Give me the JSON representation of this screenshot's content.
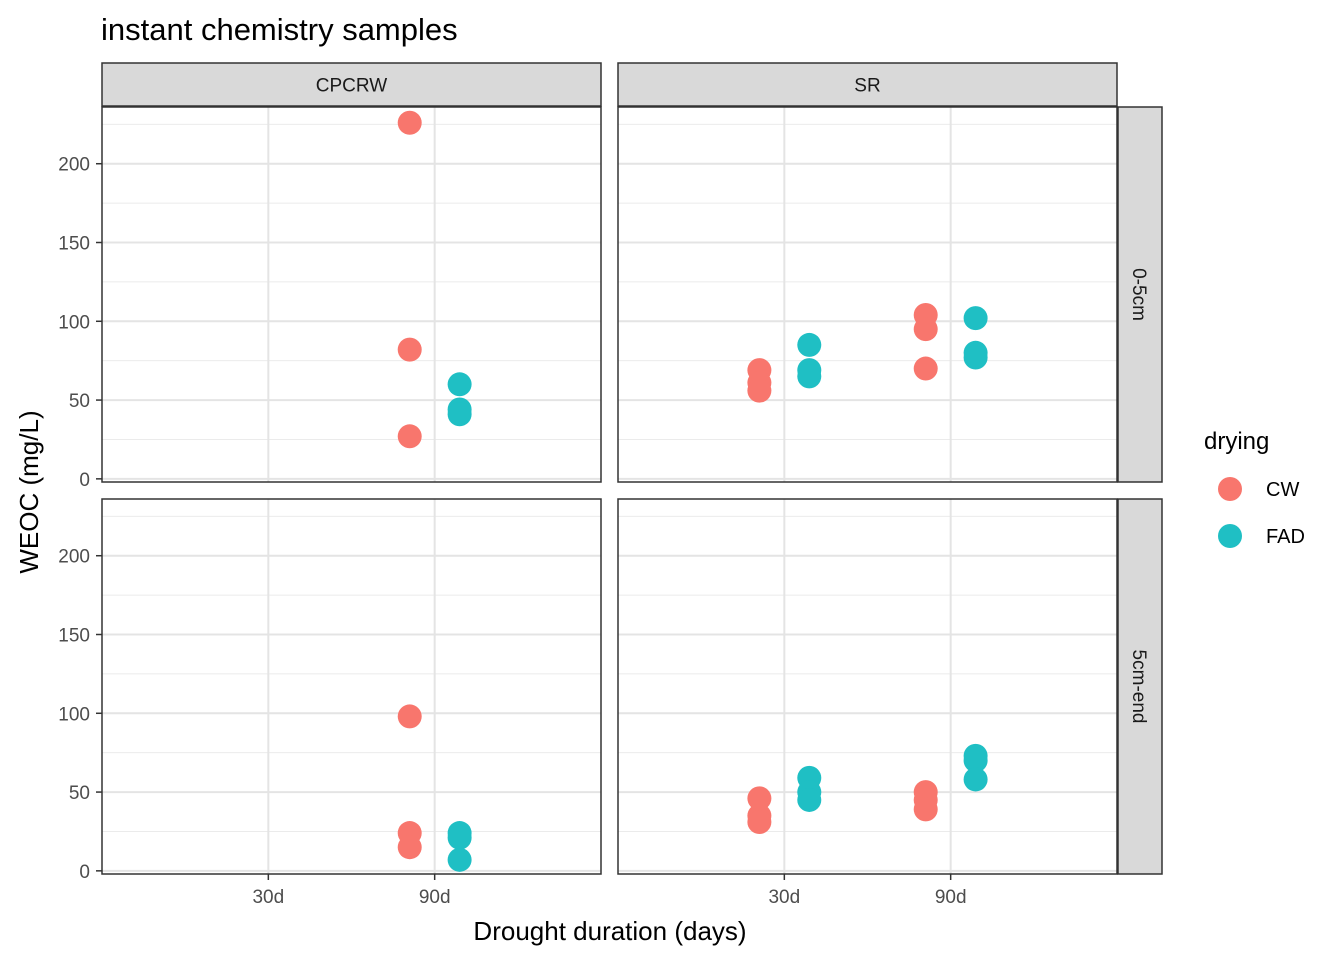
{
  "chart_data": {
    "type": "scatter",
    "title": "instant chemistry samples",
    "xlabel": "Drought duration (days)",
    "ylabel": "WEOC (mg/L)",
    "categories": [
      "30d",
      "90d"
    ],
    "ylim": [
      -2,
      236
    ],
    "y_ticks": [
      0,
      50,
      100,
      150,
      200
    ],
    "grid": true,
    "facet_cols": [
      "CPCRW",
      "SR"
    ],
    "facet_rows": [
      "0-5cm",
      "5cm-end"
    ],
    "legend": {
      "title": "drying",
      "position": "right",
      "entries": [
        {
          "label": "CW",
          "color": "#F8766D"
        },
        {
          "label": "FAD",
          "color": "#1FBFC4"
        }
      ]
    },
    "panels": [
      {
        "col": "CPCRW",
        "row": "0-5cm",
        "series": [
          {
            "name": "CW",
            "points": [
              {
                "x": "90d",
                "y": 226
              },
              {
                "x": "90d",
                "y": 82
              },
              {
                "x": "90d",
                "y": 27
              }
            ]
          },
          {
            "name": "FAD",
            "points": [
              {
                "x": "90d",
                "y": 60
              },
              {
                "x": "90d",
                "y": 44
              },
              {
                "x": "90d",
                "y": 41
              }
            ]
          }
        ]
      },
      {
        "col": "SR",
        "row": "0-5cm",
        "series": [
          {
            "name": "CW",
            "points": [
              {
                "x": "30d",
                "y": 69
              },
              {
                "x": "30d",
                "y": 61
              },
              {
                "x": "30d",
                "y": 56
              },
              {
                "x": "90d",
                "y": 104
              },
              {
                "x": "90d",
                "y": 95
              },
              {
                "x": "90d",
                "y": 70
              }
            ]
          },
          {
            "name": "FAD",
            "points": [
              {
                "x": "30d",
                "y": 85
              },
              {
                "x": "30d",
                "y": 69
              },
              {
                "x": "30d",
                "y": 65
              },
              {
                "x": "90d",
                "y": 102
              },
              {
                "x": "90d",
                "y": 80
              },
              {
                "x": "90d",
                "y": 77
              }
            ]
          }
        ]
      },
      {
        "col": "CPCRW",
        "row": "5cm-end",
        "series": [
          {
            "name": "CW",
            "points": [
              {
                "x": "90d",
                "y": 98
              },
              {
                "x": "90d",
                "y": 24
              },
              {
                "x": "90d",
                "y": 15
              }
            ]
          },
          {
            "name": "FAD",
            "points": [
              {
                "x": "90d",
                "y": 24
              },
              {
                "x": "90d",
                "y": 21
              },
              {
                "x": "90d",
                "y": 7
              }
            ]
          }
        ]
      },
      {
        "col": "SR",
        "row": "5cm-end",
        "series": [
          {
            "name": "CW",
            "points": [
              {
                "x": "30d",
                "y": 46
              },
              {
                "x": "30d",
                "y": 35
              },
              {
                "x": "30d",
                "y": 31
              },
              {
                "x": "90d",
                "y": 50
              },
              {
                "x": "90d",
                "y": 45
              },
              {
                "x": "90d",
                "y": 39
              }
            ]
          },
          {
            "name": "FAD",
            "points": [
              {
                "x": "30d",
                "y": 59
              },
              {
                "x": "30d",
                "y": 50
              },
              {
                "x": "30d",
                "y": 45
              },
              {
                "x": "90d",
                "y": 73
              },
              {
                "x": "90d",
                "y": 70
              },
              {
                "x": "90d",
                "y": 58
              }
            ]
          }
        ]
      }
    ]
  }
}
